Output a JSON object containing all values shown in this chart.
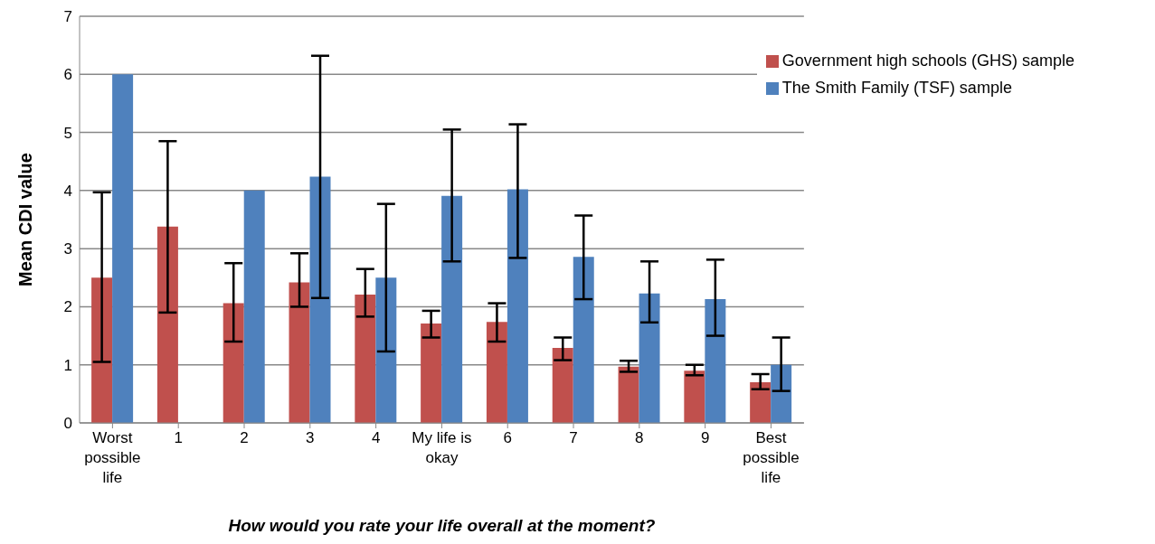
{
  "chart_data": {
    "type": "bar",
    "xlabel": "How would you rate your life overall at the moment?",
    "ylabel": "Mean CDI value",
    "categories": [
      "Worst possible life",
      "1",
      "2",
      "3",
      "4",
      "My life is okay",
      "6",
      "7",
      "8",
      "9",
      "Best possible life"
    ],
    "series": [
      {
        "name": "Government high schools (GHS) sample",
        "color": "#c0504d",
        "values": [
          2.5,
          3.38,
          2.06,
          2.42,
          2.21,
          1.71,
          1.74,
          1.29,
          0.97,
          0.9,
          0.7
        ],
        "errors": [
          [
            1.05,
            3.97
          ],
          [
            1.9,
            4.85
          ],
          [
            1.4,
            2.75
          ],
          [
            2.0,
            2.92
          ],
          [
            1.83,
            2.65
          ],
          [
            1.47,
            1.93
          ],
          [
            1.4,
            2.06
          ],
          [
            1.08,
            1.47
          ],
          [
            0.88,
            1.07
          ],
          [
            0.82,
            1.0
          ],
          [
            0.58,
            0.84
          ]
        ]
      },
      {
        "name": "The Smith Family (TSF) sample",
        "color": "#4f81bd",
        "values": [
          6.0,
          null,
          4.0,
          4.24,
          2.5,
          3.91,
          4.02,
          2.86,
          2.23,
          2.13,
          1.0
        ],
        "errors": [
          0,
          null,
          null,
          [
            2.15,
            6.32
          ],
          [
            1.23,
            3.77
          ],
          [
            2.78,
            5.05
          ],
          [
            2.84,
            5.14
          ],
          [
            2.13,
            3.57
          ],
          [
            1.73,
            2.78
          ],
          [
            1.5,
            2.81
          ],
          [
            0.55,
            1.47
          ]
        ]
      }
    ],
    "ylim": [
      0,
      7
    ],
    "yticks": [
      0,
      1,
      2,
      3,
      4,
      5,
      6,
      7
    ],
    "grid": "y",
    "legend": "top right"
  }
}
